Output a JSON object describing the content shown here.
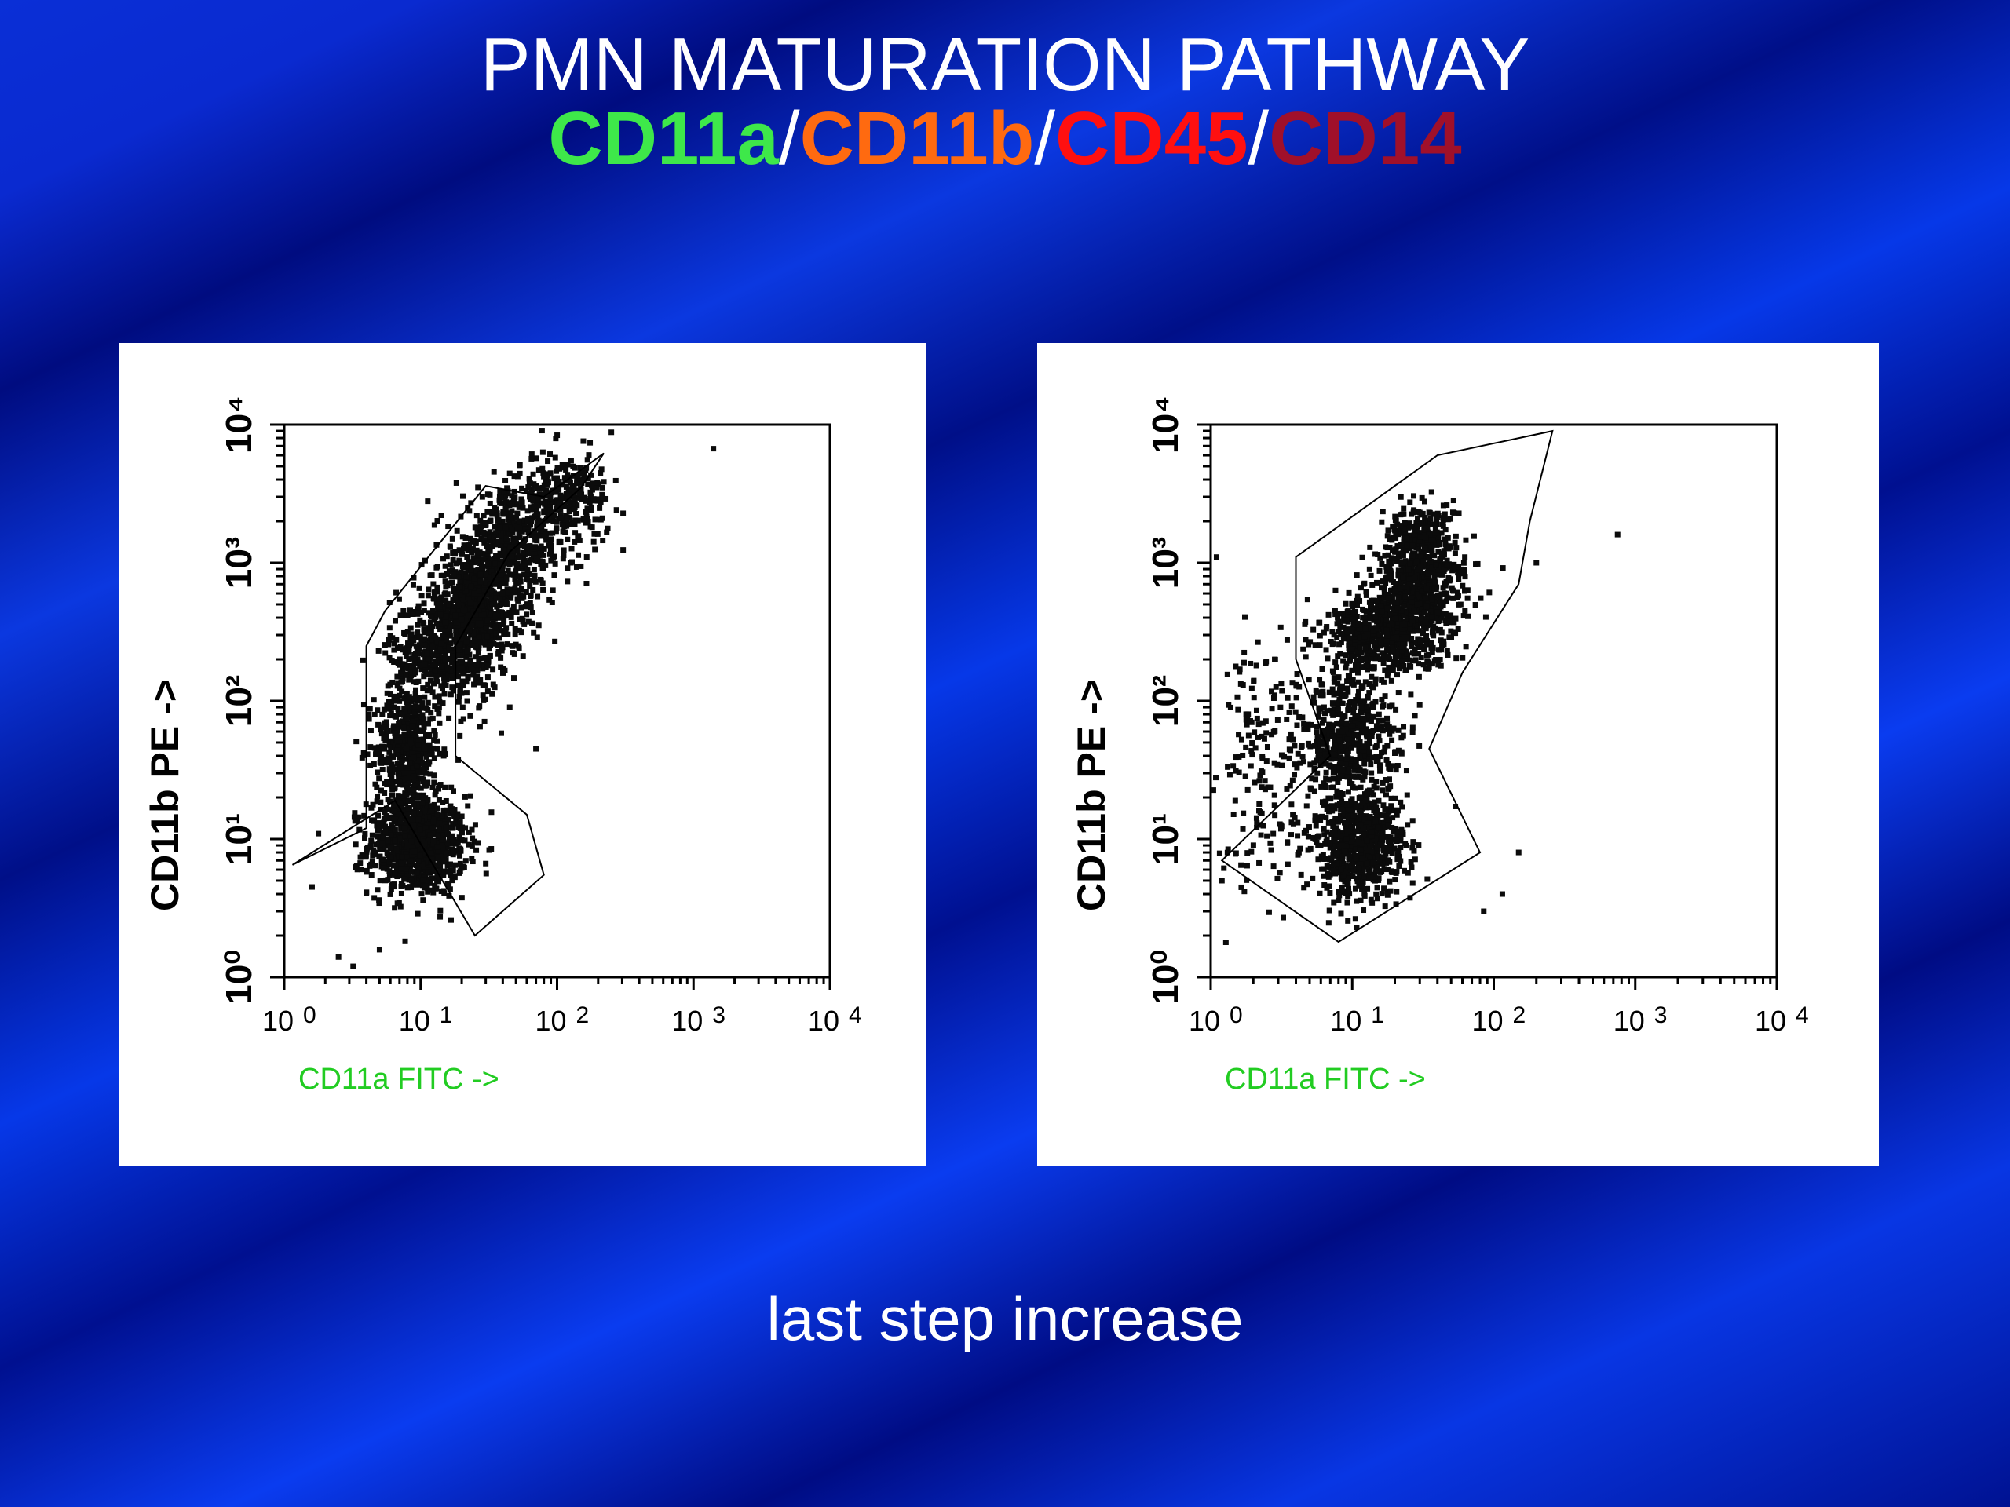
{
  "slide": {
    "title": "PMN MATURATION PATHWAY",
    "markers": [
      {
        "text": "CD11a",
        "color": "#3ee84a"
      },
      {
        "text": "CD11b",
        "color": "#ff6a10"
      },
      {
        "text": "CD45",
        "color": "#ff1010"
      },
      {
        "text": "CD14",
        "color": "#a0102a"
      }
    ],
    "separator": "/",
    "caption": "last step increase"
  },
  "colors": {
    "xlabel": "#22cc22",
    "points": "#0b0b0b"
  },
  "chart_data": [
    {
      "type": "scatter",
      "xlabel": "CD11a FITC ->",
      "ylabel": "CD11b PE ->",
      "xscale": "log",
      "yscale": "log",
      "xlim": [
        1,
        10000
      ],
      "ylim": [
        1,
        10000
      ],
      "xticks": [
        {
          "base": "10",
          "exp": "0"
        },
        {
          "base": "10",
          "exp": "1"
        },
        {
          "base": "10",
          "exp": "2"
        },
        {
          "base": "10",
          "exp": "3"
        },
        {
          "base": "10",
          "exp": "4"
        }
      ],
      "yticks": [
        "10⁰",
        "10¹",
        "10²",
        "10³",
        "10⁴"
      ],
      "gate": [
        [
          1.15,
          6.5
        ],
        [
          4,
          12
        ],
        [
          4,
          250
        ],
        [
          5.5,
          450
        ],
        [
          30,
          3600
        ],
        [
          80,
          3000
        ],
        [
          220,
          6200
        ],
        [
          150,
          3500
        ],
        [
          45,
          1200
        ],
        [
          18,
          250
        ],
        [
          18,
          40
        ],
        [
          60,
          15
        ],
        [
          80,
          5.5
        ],
        [
          25,
          2
        ],
        [
          6.5,
          19
        ]
      ],
      "clusters": [
        {
          "cx": 9.5,
          "cy": 9,
          "sx": 0.18,
          "sy": 0.18,
          "n": 900
        },
        {
          "cx": 8,
          "cy": 45,
          "sx": 0.12,
          "sy": 0.22,
          "n": 500
        },
        {
          "cx": 15,
          "cy": 220,
          "sx": 0.2,
          "sy": 0.2,
          "n": 550
        },
        {
          "cx": 25,
          "cy": 500,
          "sx": 0.18,
          "sy": 0.18,
          "n": 650
        },
        {
          "cx": 45,
          "cy": 1300,
          "sx": 0.2,
          "sy": 0.2,
          "n": 500
        },
        {
          "cx": 110,
          "cy": 2800,
          "sx": 0.17,
          "sy": 0.17,
          "n": 300
        }
      ],
      "outliers": [
        [
          2.5,
          1.4
        ],
        [
          3.2,
          1.2
        ],
        [
          1.6,
          4.5
        ],
        [
          75,
          2000
        ],
        [
          82,
          1600
        ],
        [
          250,
          8800
        ],
        [
          1400,
          6700
        ],
        [
          45,
          90
        ],
        [
          70,
          45
        ]
      ]
    },
    {
      "type": "scatter",
      "xlabel": "CD11a FITC ->",
      "ylabel": "CD11b PE ->",
      "xscale": "log",
      "yscale": "log",
      "xlim": [
        1,
        10000
      ],
      "ylim": [
        1,
        10000
      ],
      "xticks": [
        {
          "base": "10",
          "exp": "0"
        },
        {
          "base": "10",
          "exp": "1"
        },
        {
          "base": "10",
          "exp": "2"
        },
        {
          "base": "10",
          "exp": "3"
        },
        {
          "base": "10",
          "exp": "4"
        }
      ],
      "yticks": [
        "10⁰",
        "10¹",
        "10²",
        "10³",
        "10⁴"
      ],
      "gate": [
        [
          1.2,
          7
        ],
        [
          8,
          1.8
        ],
        [
          80,
          8
        ],
        [
          35,
          45
        ],
        [
          60,
          160
        ],
        [
          150,
          700
        ],
        [
          180,
          2000
        ],
        [
          260,
          9000
        ],
        [
          40,
          6000
        ],
        [
          4,
          1100
        ],
        [
          4,
          200
        ],
        [
          7,
          40
        ]
      ],
      "clusters": [
        {
          "cx": 11,
          "cy": 9,
          "sx": 0.17,
          "sy": 0.2,
          "n": 700
        },
        {
          "cx": 9.5,
          "cy": 55,
          "sx": 0.17,
          "sy": 0.24,
          "n": 550
        },
        {
          "cx": 18,
          "cy": 300,
          "sx": 0.22,
          "sy": 0.14,
          "n": 650
        },
        {
          "cx": 30,
          "cy": 700,
          "sx": 0.16,
          "sy": 0.16,
          "n": 500
        },
        {
          "cx": 30,
          "cy": 1500,
          "sx": 0.13,
          "sy": 0.13,
          "n": 250
        },
        {
          "cx": 2.5,
          "cy": 30,
          "sx": 0.18,
          "sy": 0.5,
          "n": 180
        }
      ],
      "outliers": [
        [
          750,
          1600
        ],
        [
          200,
          1000
        ],
        [
          150,
          8
        ],
        [
          115,
          4
        ],
        [
          85,
          3
        ],
        [
          1.1,
          1100
        ],
        [
          1.2,
          5
        ]
      ]
    }
  ]
}
